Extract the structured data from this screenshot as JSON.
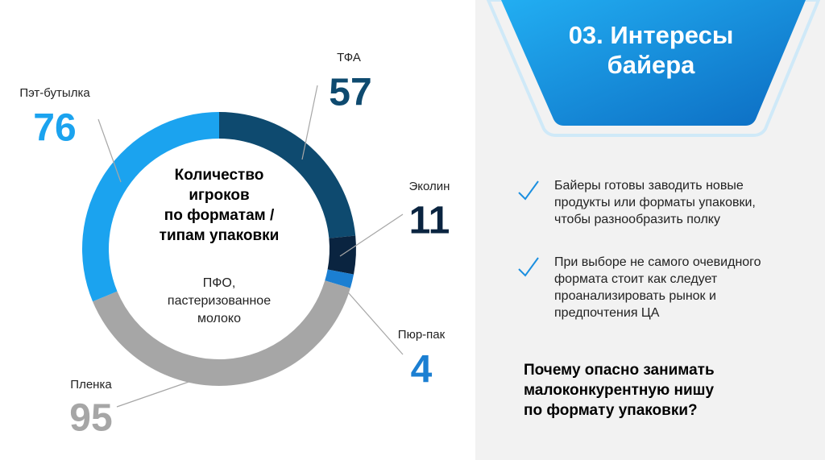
{
  "chart_data": {
    "type": "pie",
    "donut": true,
    "categories": [
      "ТФА",
      "Эколин",
      "Пюр-пак",
      "Пленка",
      "Пэт-бутылка"
    ],
    "values": [
      57,
      11,
      4,
      95,
      76
    ],
    "colors": [
      "#0e4a6f",
      "#0a2440",
      "#1b7fd2",
      "#a6a6a6",
      "#1ba3ef"
    ],
    "center_title": [
      "Количество",
      "игроков",
      "по форматам /",
      "типам упаковки"
    ],
    "center_subtitle": [
      "ПФО,",
      "пастеризованное",
      "молоко"
    ]
  },
  "panel": {
    "title": [
      "03. Интересы",
      "байера"
    ],
    "bullets": [
      [
        "Байеры готовы заводить новые",
        "продукты или форматы упаковки,",
        "чтобы разнообразить полку"
      ],
      [
        "При выборе не самого очевидного",
        "формата стоит как следует",
        "проанализировать рынок и",
        "предпочтения ЦА"
      ]
    ],
    "question": [
      "Почему опасно занимать",
      "малоконкурентную нишу",
      "по формату упаковки?"
    ]
  }
}
